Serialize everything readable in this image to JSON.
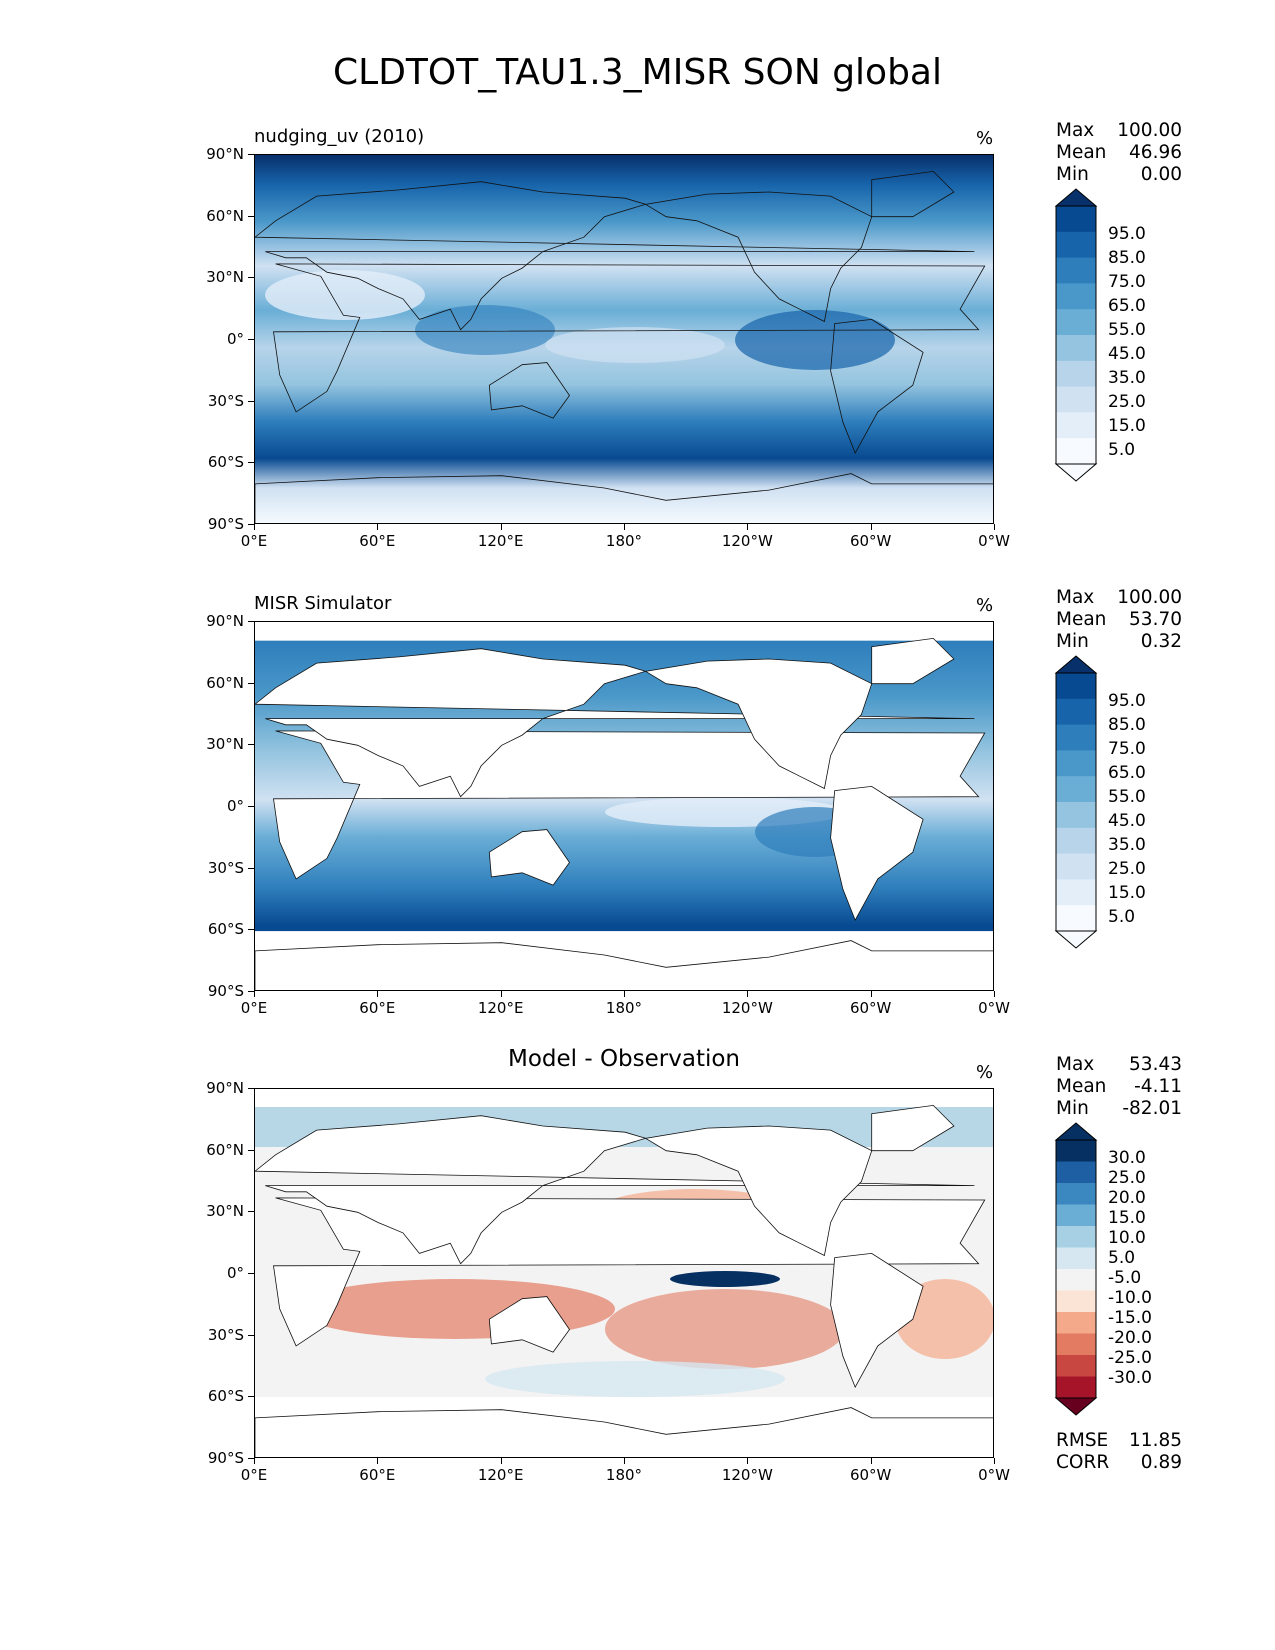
{
  "title": "CLDTOT_TAU1.3_MISR SON global",
  "lat_labels": [
    "90°N",
    "60°N",
    "30°N",
    "0°",
    "30°S",
    "60°S",
    "90°S"
  ],
  "lon_labels": [
    "0°E",
    "60°E",
    "120°E",
    "180°",
    "120°W",
    "60°W",
    "0°W"
  ],
  "colors": {
    "blues": [
      "#f7fbff",
      "#e3eef9",
      "#d0e1f2",
      "#b7d4ea",
      "#94c4df",
      "#6aaed6",
      "#4a98c9",
      "#2e7ebc",
      "#1764ab",
      "#084a91",
      "#08306b"
    ],
    "diff_neg": [
      "#fbe3d6",
      "#f4a98a",
      "#e27b62",
      "#c94741",
      "#a51429",
      "#67001f"
    ],
    "diff_pos": [
      "#f3f3f3",
      "#d6e7f1",
      "#a7d0e4",
      "#6aaed6",
      "#3b88c0",
      "#1d5fa2",
      "#053061"
    ]
  },
  "panels": {
    "test": {
      "title": "nudging_uv (2010)",
      "units": "%",
      "stats": {
        "max_label": "Max",
        "max": "100.00",
        "mean_label": "Mean",
        "mean": "46.96",
        "min_label": "Min",
        "min": "0.00"
      },
      "colorbar_labels": [
        "95.0",
        "85.0",
        "75.0",
        "65.0",
        "55.0",
        "45.0",
        "35.0",
        "25.0",
        "15.0",
        "5.0"
      ]
    },
    "ref": {
      "title": "MISR Simulator",
      "units": "%",
      "stats": {
        "max_label": "Max",
        "max": "100.00",
        "mean_label": "Mean",
        "mean": "53.70",
        "min_label": "Min",
        "min": "0.32"
      },
      "colorbar_labels": [
        "95.0",
        "85.0",
        "75.0",
        "65.0",
        "55.0",
        "45.0",
        "35.0",
        "25.0",
        "15.0",
        "5.0"
      ]
    },
    "diff": {
      "title": "Model - Observation",
      "units": "%",
      "stats": {
        "max_label": "Max",
        "max": "53.43",
        "mean_label": "Mean",
        "mean": "-4.11",
        "min_label": "Min",
        "min": "-82.01"
      },
      "colorbar_labels": [
        "30.0",
        "25.0",
        "20.0",
        "15.0",
        "10.0",
        "5.0",
        "-5.0",
        "-10.0",
        "-15.0",
        "-20.0",
        "-25.0",
        "-30.0"
      ],
      "rmse_label": "RMSE",
      "rmse": "11.85",
      "corr_label": "CORR",
      "corr": "0.89"
    }
  }
}
